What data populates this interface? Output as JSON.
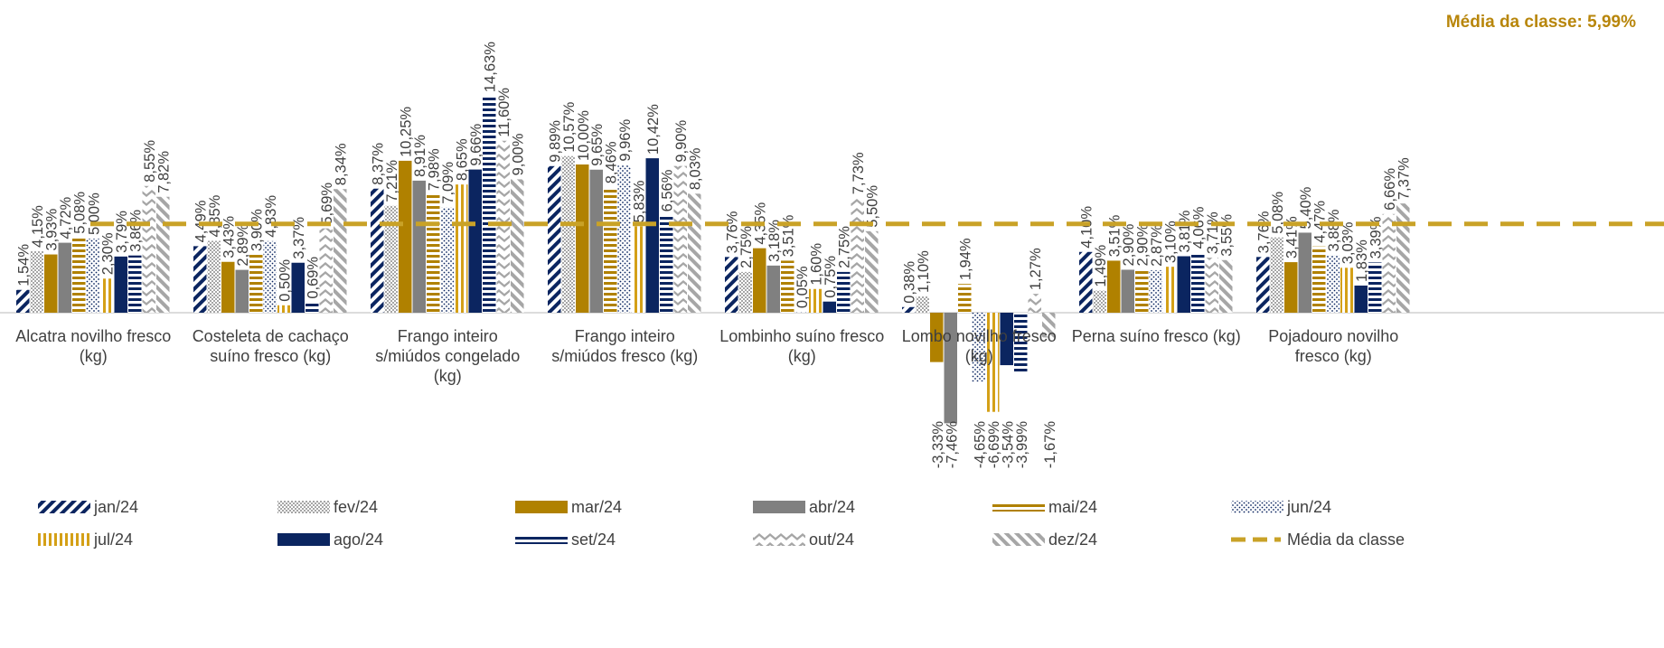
{
  "average_label": "Média da classe: 5,99%",
  "colors": {
    "gold": "#b08100",
    "gold_light": "#d4a017",
    "gray": "#808080",
    "navy": "#0b2560",
    "light_gray": "#bfbfbf",
    "hatch_gray": "#a6a6a6",
    "axis": "#d0d0d0",
    "text": "#404040",
    "avg_line": "#c9a227"
  },
  "chart_data": {
    "type": "bar",
    "title": "",
    "xlabel": "",
    "ylabel": "",
    "average": 5.99,
    "average_series_name": "Média da classe",
    "categories": [
      [
        "Alcatra novilho fresco",
        "(kg)"
      ],
      [
        "Costeleta de cachaço",
        "suíno fresco (kg)"
      ],
      [
        "Frango inteiro",
        "s/miúdos congelado",
        "(kg)"
      ],
      [
        "Frango inteiro",
        "s/miúdos fresco (kg)"
      ],
      [
        "Lombinho suíno fresco",
        "(kg)"
      ],
      [
        "Lombo novilho fresco",
        "(kg)"
      ],
      [
        "Perna suíno fresco (kg)"
      ],
      [
        "Pojadouro novilho",
        "fresco (kg)"
      ]
    ],
    "series": [
      {
        "name": "jan/24",
        "pattern": "diag-navy",
        "values": [
          1.54,
          4.49,
          8.37,
          9.89,
          3.76,
          0.38,
          4.1,
          3.76
        ],
        "labels": [
          "1,54%",
          "4,49%",
          "8,37%",
          "9,89%",
          "3,76%",
          "0,38%",
          "4,10%",
          "3,76%"
        ]
      },
      {
        "name": "fev/24",
        "pattern": "check-gray",
        "values": [
          4.15,
          4.85,
          7.21,
          10.57,
          2.75,
          1.1,
          1.49,
          5.08
        ],
        "labels": [
          "4,15%",
          "4,85%",
          "7,21%",
          "10,57%",
          "2,75%",
          "1,10%",
          "1,49%",
          "5,08%"
        ]
      },
      {
        "name": "mar/24",
        "pattern": "solid-gold",
        "values": [
          3.93,
          3.43,
          10.25,
          10.0,
          4.35,
          -3.33,
          3.51,
          3.41
        ],
        "labels": [
          "3,93%",
          "3,43%",
          "10,25%",
          "10,00%",
          "4,35%",
          "-3,33%",
          "3,51%",
          "3,41%"
        ]
      },
      {
        "name": "abr/24",
        "pattern": "solid-gray",
        "values": [
          4.72,
          2.89,
          8.91,
          9.65,
          3.18,
          -7.46,
          2.9,
          5.4
        ],
        "labels": [
          "4,72%",
          "2,89%",
          "8,91%",
          "9,65%",
          "3,18%",
          "-7,46%",
          "2,90%",
          "5,40%"
        ]
      },
      {
        "name": "mai/24",
        "pattern": "hlines-gold",
        "values": [
          5.08,
          3.9,
          7.98,
          8.46,
          3.51,
          1.94,
          2.9,
          4.47
        ],
        "labels": [
          "5,08%",
          "3,90%",
          "7,98%",
          "8,46%",
          "3,51%",
          "1,94%",
          "2,90%",
          "4,47%"
        ]
      },
      {
        "name": "jun/24",
        "pattern": "dots-navy",
        "values": [
          5.0,
          4.83,
          7.09,
          9.96,
          0.05,
          -4.65,
          2.87,
          3.88
        ],
        "labels": [
          "5,00%",
          "4,83%",
          "7,09%",
          "9,96%",
          "0,05%",
          "-4,65%",
          "2,87%",
          "3,88%"
        ]
      },
      {
        "name": "jul/24",
        "pattern": "vlines-gold",
        "values": [
          2.3,
          0.5,
          8.65,
          5.83,
          1.6,
          -6.69,
          3.1,
          3.03
        ],
        "labels": [
          "2,30%",
          "0,50%",
          "8,65%",
          "5,83%",
          "1,60%",
          "-6,69%",
          "3,10%",
          "3,03%"
        ]
      },
      {
        "name": "ago/24",
        "pattern": "solid-navy",
        "values": [
          3.79,
          3.37,
          9.66,
          10.42,
          0.75,
          -3.54,
          3.81,
          1.83
        ],
        "labels": [
          "3,79%",
          "3,37%",
          "9,66%",
          "10,42%",
          "0,75%",
          "-3,54%",
          "3,81%",
          "1,83%"
        ]
      },
      {
        "name": "set/24",
        "pattern": "hlines-navy",
        "values": [
          3.86,
          0.69,
          14.63,
          6.56,
          2.75,
          -3.99,
          4.06,
          3.39
        ],
        "labels": [
          "3,86%",
          "0,69%",
          "14,63%",
          "6,56%",
          "2,75%",
          "-3,99%",
          "4,06%",
          "3,39%"
        ]
      },
      {
        "name": "out/24",
        "pattern": "chevron-gray",
        "values": [
          8.55,
          5.69,
          11.6,
          9.9,
          7.73,
          1.27,
          3.71,
          6.66
        ],
        "labels": [
          "8,55%",
          "5,69%",
          "11,60%",
          "9,90%",
          "7,73%",
          "1,27%",
          "3,71%",
          "6,66%"
        ]
      },
      {
        "name": "dez/24",
        "pattern": "diag-gray",
        "values": [
          7.82,
          8.34,
          9.0,
          8.03,
          5.5,
          -1.67,
          3.55,
          7.37
        ],
        "labels": [
          "7,82%",
          "8,34%",
          "9,00%",
          "8,03%",
          "5,50%",
          "-1,67%",
          "3,55%",
          "7,37%"
        ]
      }
    ],
    "legend_placement": "bottom",
    "legend_rows": [
      [
        "jan/24",
        "fev/24",
        "mar/24",
        "abr/24",
        "mai/24",
        "jun/24"
      ],
      [
        "jul/24",
        "ago/24",
        "set/24",
        "out/24",
        "dez/24",
        "Média da classe"
      ]
    ]
  }
}
